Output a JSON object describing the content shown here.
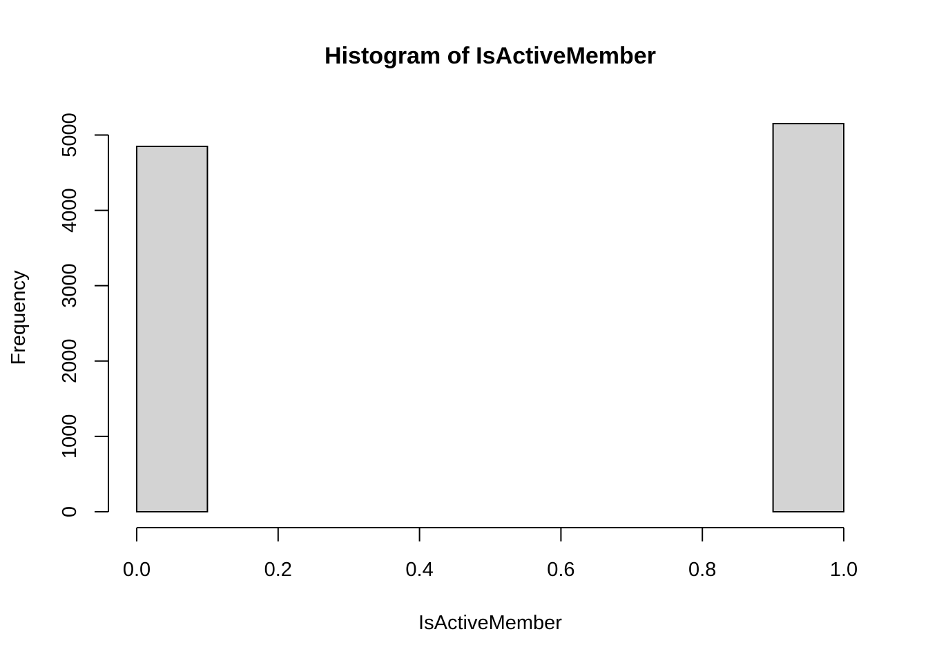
{
  "chart_data": {
    "type": "bar",
    "title": "Histogram of IsActiveMember",
    "xlabel": "IsActiveMember",
    "ylabel": "Frequency",
    "bar_color": "#d3d3d3",
    "xlim": [
      0,
      1
    ],
    "ylim": [
      0,
      5151
    ],
    "x_ticks": [
      {
        "value": 0.0,
        "label": "0.0"
      },
      {
        "value": 0.2,
        "label": "0.2"
      },
      {
        "value": 0.4,
        "label": "0.4"
      },
      {
        "value": 0.6,
        "label": "0.6"
      },
      {
        "value": 0.8,
        "label": "0.8"
      },
      {
        "value": 1.0,
        "label": "1.0"
      }
    ],
    "y_ticks": [
      {
        "value": 0,
        "label": "0"
      },
      {
        "value": 1000,
        "label": "1000"
      },
      {
        "value": 2000,
        "label": "2000"
      },
      {
        "value": 3000,
        "label": "3000"
      },
      {
        "value": 4000,
        "label": "4000"
      },
      {
        "value": 5000,
        "label": "5000"
      }
    ],
    "bins": [
      {
        "start": 0.0,
        "end": 0.1,
        "count": 4849
      },
      {
        "start": 0.1,
        "end": 0.2,
        "count": 0
      },
      {
        "start": 0.2,
        "end": 0.3,
        "count": 0
      },
      {
        "start": 0.3,
        "end": 0.4,
        "count": 0
      },
      {
        "start": 0.4,
        "end": 0.5,
        "count": 0
      },
      {
        "start": 0.5,
        "end": 0.6,
        "count": 0
      },
      {
        "start": 0.6,
        "end": 0.7,
        "count": 0
      },
      {
        "start": 0.7,
        "end": 0.8,
        "count": 0
      },
      {
        "start": 0.8,
        "end": 0.9,
        "count": 0
      },
      {
        "start": 0.9,
        "end": 1.0,
        "count": 5151
      }
    ]
  }
}
